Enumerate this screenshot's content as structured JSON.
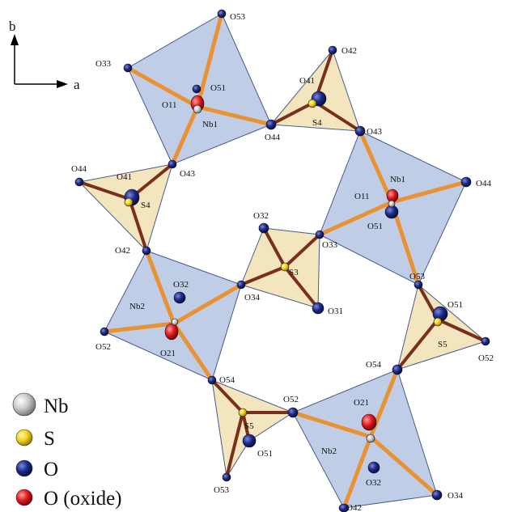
{
  "axes": {
    "vertical": "b",
    "horizontal": "a"
  },
  "colors": {
    "nb": "#c9c9c9",
    "s": "#f2d21b",
    "o": "#1c2a8c",
    "o_oxide": "#e3191c",
    "nb_polyhedron": "#a9bedd",
    "s_polyhedron": "#f1e1b2",
    "bond_orange": "#e89233",
    "bond_dark": "#7a2f1d"
  },
  "legend": [
    {
      "label": "Nb",
      "element": "nb"
    },
    {
      "label": "S",
      "element": "s"
    },
    {
      "label": "O",
      "element": "o"
    },
    {
      "label": "O (oxide)",
      "element": "o_oxide"
    }
  ],
  "labels": {
    "o53_t": "O53",
    "o33_t": "O33",
    "o51_t": "O51",
    "o11_t": "O11",
    "nb1_t": "Nb1",
    "o44_t": "O44",
    "o42_t": "O42",
    "o41_t": "O41",
    "s4_t": "S4",
    "o43_t": "O43",
    "o44_l": "O44",
    "o41_l": "O41",
    "o43_l": "O43",
    "s4_l": "S4",
    "nb1_r": "Nb1",
    "o11_r": "O11",
    "o44_r": "O44",
    "o51_r": "O51",
    "o32_c": "O32",
    "o33_c": "O33",
    "s3_c": "S3",
    "o31_c": "O31",
    "o34_c": "O34",
    "o42_l": "O42",
    "o32_l": "O32",
    "nb2_l": "Nb2",
    "o21_l": "O21",
    "o52_l": "O52",
    "o53_r": "O53",
    "o51_r2": "O51",
    "s5_r": "S5",
    "o52_r": "O52",
    "o54_r": "O54",
    "o54_l": "O54",
    "s5_b": "S5",
    "o52_b": "O52",
    "o51_b": "O51",
    "o53_b": "O53",
    "o21_b": "O21",
    "nb2_b": "Nb2",
    "o32_b": "O32",
    "o34_b": "O34",
    "o42_b": "O42"
  }
}
